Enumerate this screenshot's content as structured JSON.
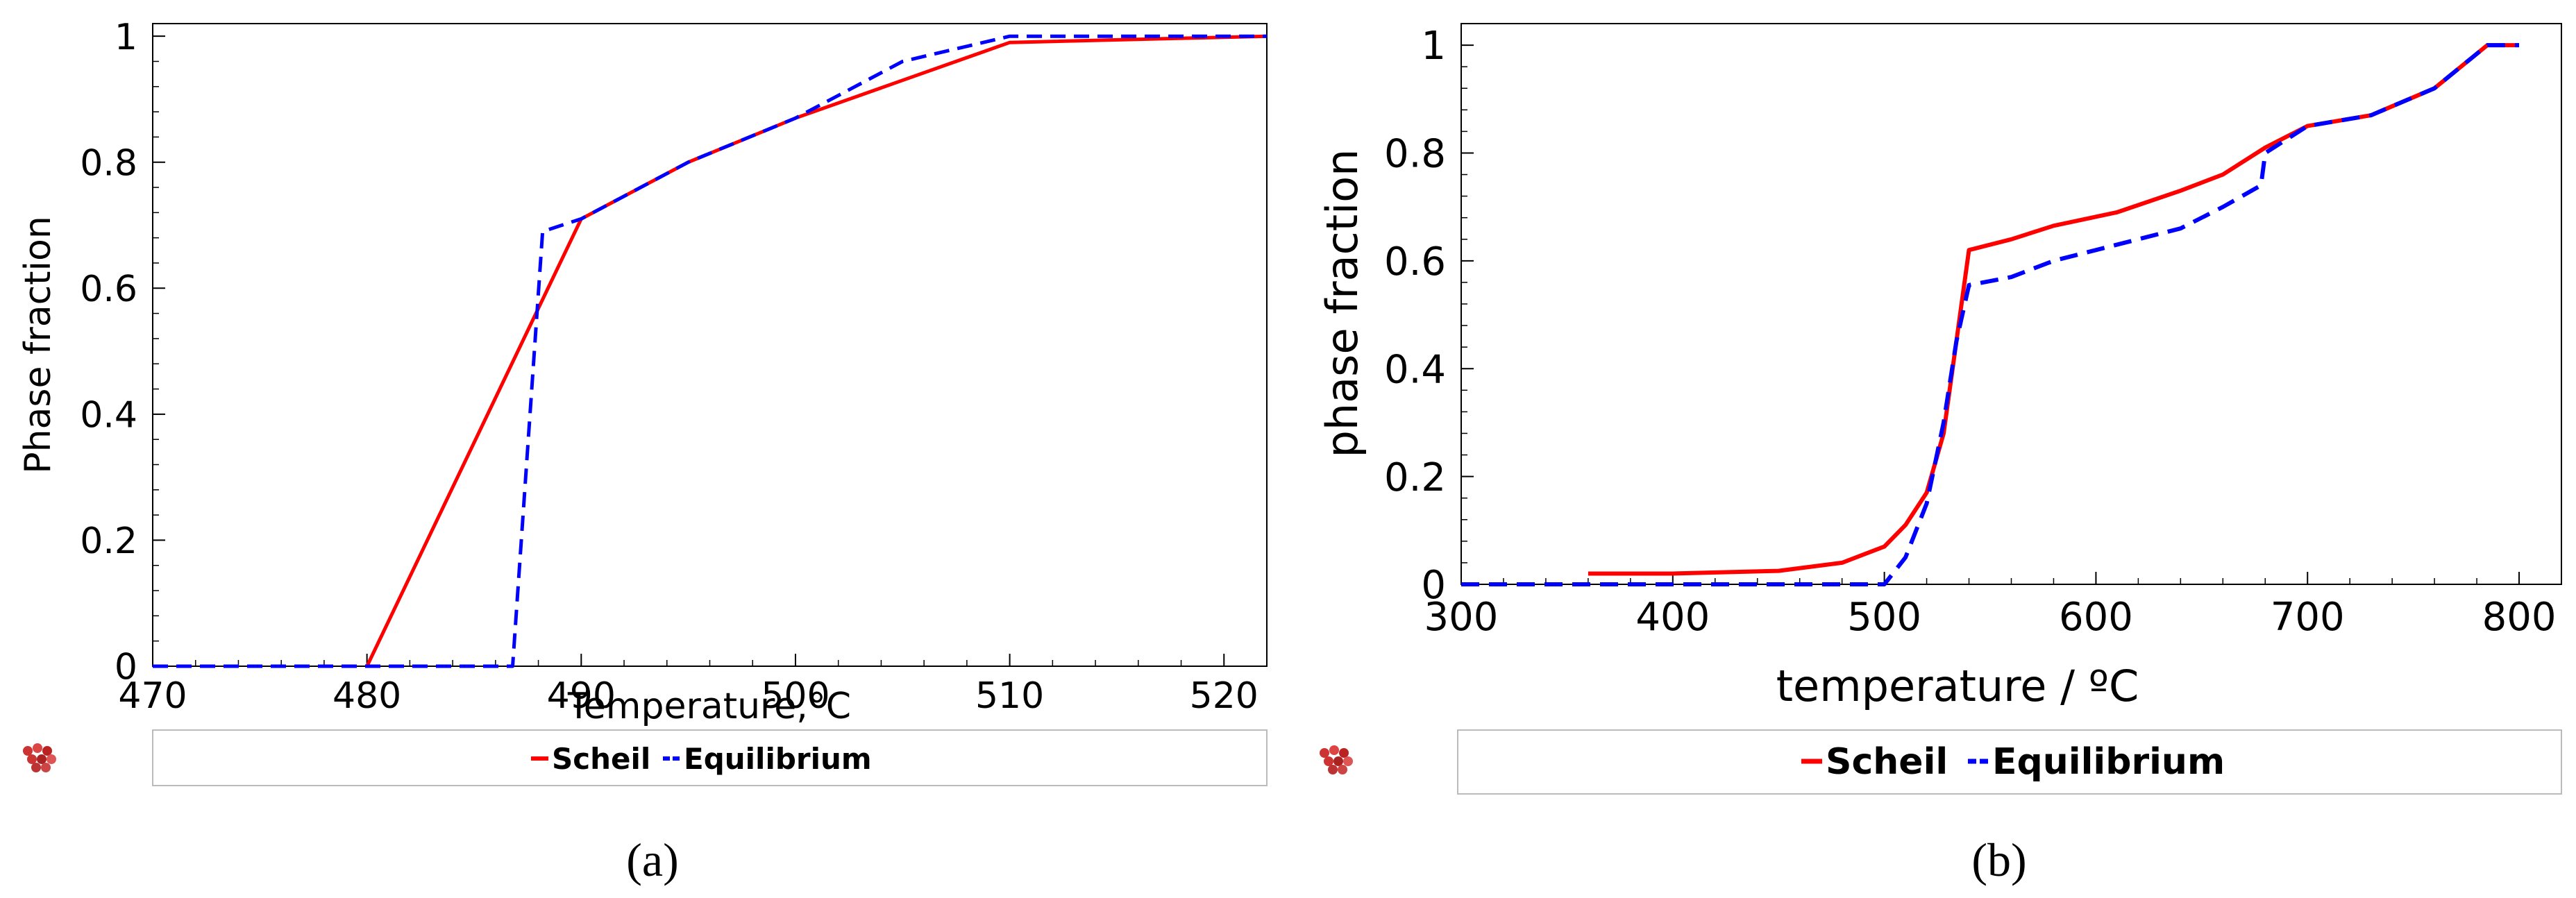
{
  "panels": [
    {
      "caption": "(a)",
      "legend_icon": "ball-cluster-icon",
      "chart_data": {
        "type": "line",
        "xlabel": "Temperature,°C",
        "ylabel": "Phase fraction",
        "xlim": [
          470,
          522
        ],
        "ylim": [
          0,
          1.02
        ],
        "xticks": [
          470,
          480,
          490,
          500,
          510,
          520
        ],
        "xtick_labels": [
          "470",
          "480",
          "490",
          "500",
          "510",
          "520"
        ],
        "yticks": [
          0,
          0.2,
          0.4,
          0.6,
          0.8,
          1
        ],
        "ytick_labels": [
          "0",
          "0.2",
          "0.4",
          "0.6",
          "0.8",
          "1"
        ],
        "grid": false,
        "legend": "bottom",
        "series": [
          {
            "name": "Scheil",
            "color": "#ff0000",
            "dash": "solid",
            "x": [
              480,
              490,
              495,
              500,
              505,
              510,
              522
            ],
            "y": [
              0,
              0.71,
              0.8,
              0.87,
              0.93,
              0.99,
              1
            ]
          },
          {
            "name": "Equilibrium",
            "color": "#0000ff",
            "dash": "dashed",
            "x": [
              470,
              486.8,
              488.2,
              490,
              495,
              500,
              505,
              510,
              522
            ],
            "y": [
              0,
              0,
              0.69,
              0.71,
              0.8,
              0.87,
              0.96,
              1,
              1
            ]
          }
        ]
      }
    },
    {
      "caption": "(b)",
      "legend_icon": "ball-cluster-icon",
      "chart_data": {
        "type": "line",
        "xlabel": "temperature / ºC",
        "ylabel": "phase fraction",
        "xlim": [
          300,
          820
        ],
        "ylim": [
          0,
          1.04
        ],
        "xticks": [
          300,
          400,
          500,
          600,
          700,
          800
        ],
        "xtick_labels": [
          "300",
          "400",
          "500",
          "600",
          "700",
          "800"
        ],
        "yticks": [
          0,
          0.2,
          0.4,
          0.6,
          0.8,
          1
        ],
        "ytick_labels": [
          "0",
          "0.2",
          "0.4",
          "0.6",
          "0.8",
          "1"
        ],
        "grid": false,
        "legend": "bottom",
        "series": [
          {
            "name": "Scheil",
            "color": "#ff0000",
            "dash": "solid",
            "x": [
              360,
              400,
              450,
              480,
              500,
              510,
              520,
              528,
              534,
              540,
              560,
              580,
              610,
              640,
              660,
              680,
              700,
              730,
              760,
              785,
              800
            ],
            "y": [
              0.02,
              0.02,
              0.025,
              0.04,
              0.07,
              0.11,
              0.17,
              0.28,
              0.45,
              0.62,
              0.64,
              0.665,
              0.69,
              0.73,
              0.76,
              0.81,
              0.85,
              0.87,
              0.92,
              1.0,
              1.0
            ]
          },
          {
            "name": "Equilibrium",
            "color": "#0000ff",
            "dash": "dashed",
            "x": [
              300,
              500,
              510,
              520,
              528,
              534,
              540,
              560,
              580,
              600,
              640,
              660,
              678,
              680,
              700,
              730,
              760,
              785,
              800
            ],
            "y": [
              0,
              0,
              0.05,
              0.15,
              0.3,
              0.45,
              0.555,
              0.57,
              0.6,
              0.62,
              0.66,
              0.7,
              0.74,
              0.8,
              0.85,
              0.87,
              0.92,
              1.0,
              1.0
            ]
          }
        ]
      }
    }
  ]
}
